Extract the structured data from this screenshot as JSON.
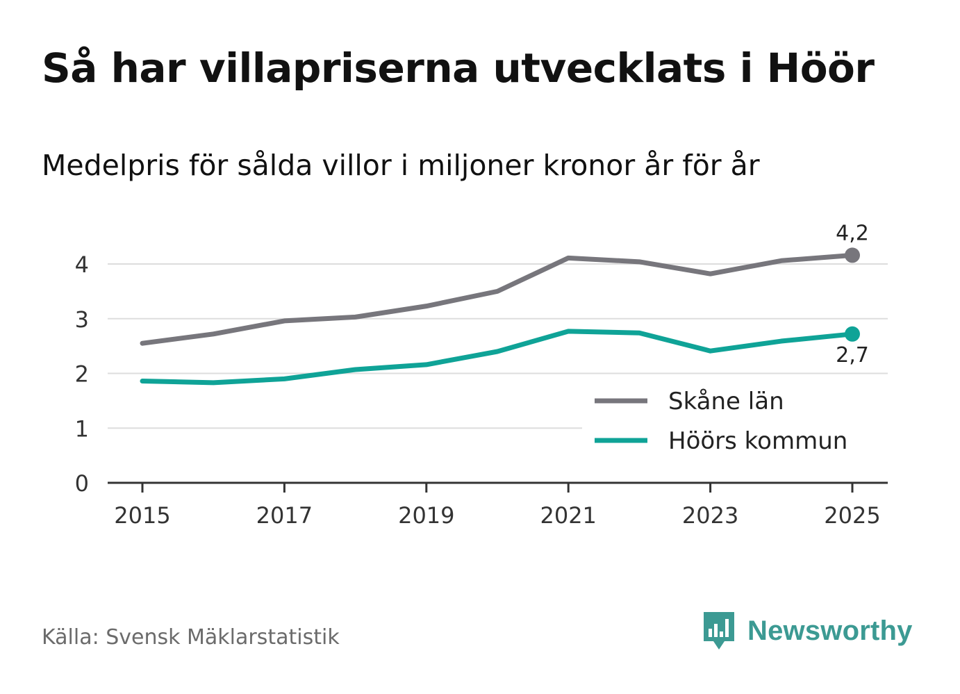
{
  "title": "Så har villapriserna utvecklats i Höör",
  "subtitle": "Medelpris för sålda villor i miljoner kronor år för år",
  "source": "Källa: Svensk Mäklarstatistik",
  "brand": {
    "name": "Newsworthy",
    "icon": "newsworthy-logo-icon",
    "color": "#3c9a93"
  },
  "chart_data": {
    "type": "line",
    "title": "Så har villapriserna utvecklats i Höör",
    "subtitle": "Medelpris för sålda villor i miljoner kronor år för år",
    "xlabel": "",
    "ylabel": "",
    "x": [
      2015,
      2016,
      2017,
      2018,
      2019,
      2020,
      2021,
      2022,
      2023,
      2024,
      2025
    ],
    "xticks": [
      "2015",
      "2017",
      "2019",
      "2021",
      "2023",
      "2025"
    ],
    "xlim": [
      2014.75,
      2025.25
    ],
    "yticks": [
      "0",
      "1",
      "2",
      "3",
      "4"
    ],
    "ylim": [
      0,
      4.5
    ],
    "grid": true,
    "legend_position": "bottom-right",
    "series": [
      {
        "name": "Skåne län",
        "color": "#77767c",
        "values": [
          2.55,
          2.72,
          2.96,
          3.03,
          3.23,
          3.5,
          4.11,
          4.04,
          3.82,
          4.06,
          4.16
        ],
        "end_label": "4,2"
      },
      {
        "name": "Höörs kommun",
        "color": "#0fa397",
        "values": [
          1.86,
          1.83,
          1.9,
          2.07,
          2.16,
          2.4,
          2.77,
          2.74,
          2.41,
          2.59,
          2.72
        ],
        "end_label": "2,7"
      }
    ]
  }
}
